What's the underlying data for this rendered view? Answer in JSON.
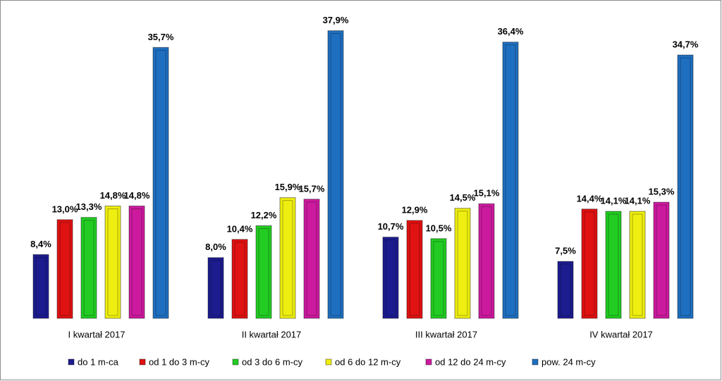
{
  "chart_data": {
    "type": "bar",
    "categories": [
      "I kwartał 2017",
      "II kwartał 2017",
      "III kwartał 2017",
      "IV kwartał 2017"
    ],
    "ylim": [
      0,
      40
    ],
    "series": [
      {
        "name": "do 1 m-ca",
        "color": "#1c1c8f",
        "values": [
          8.4,
          8.0,
          10.7,
          7.5
        ],
        "value_labels": [
          "8,4%",
          "8,0%",
          "10,7%",
          "7,5%"
        ]
      },
      {
        "name": "od 1 do 3 m-cy",
        "color": "#e01212",
        "values": [
          13.0,
          10.4,
          12.9,
          14.4
        ],
        "value_labels": [
          "13,0%",
          "10,4%",
          "12,9%",
          "14,4%"
        ]
      },
      {
        "name": "od 3 do 6 m-cy",
        "color": "#22cc22",
        "values": [
          13.3,
          12.2,
          10.5,
          14.1
        ],
        "value_labels": [
          "13,3%",
          "12,2%",
          "10,5%",
          "14,1%"
        ]
      },
      {
        "name": "od 6 do 12 m-cy",
        "color": "#eeee10",
        "values": [
          14.8,
          15.9,
          14.5,
          14.1
        ],
        "value_labels": [
          "14,8%",
          "15,9%",
          "14,5%",
          "14,1%"
        ]
      },
      {
        "name": "od 12 do 24 m-cy",
        "color": "#cc1a9e",
        "values": [
          14.8,
          15.7,
          15.1,
          15.3
        ],
        "value_labels": [
          "14,8%",
          "15,7%",
          "15,1%",
          "15,3%"
        ]
      },
      {
        "name": "pow. 24 m-cy",
        "color": "#1f6fc0",
        "values": [
          35.7,
          37.9,
          36.4,
          34.7
        ],
        "value_labels": [
          "35,7%",
          "37,9%",
          "36,4%",
          "34,7%"
        ]
      }
    ]
  }
}
